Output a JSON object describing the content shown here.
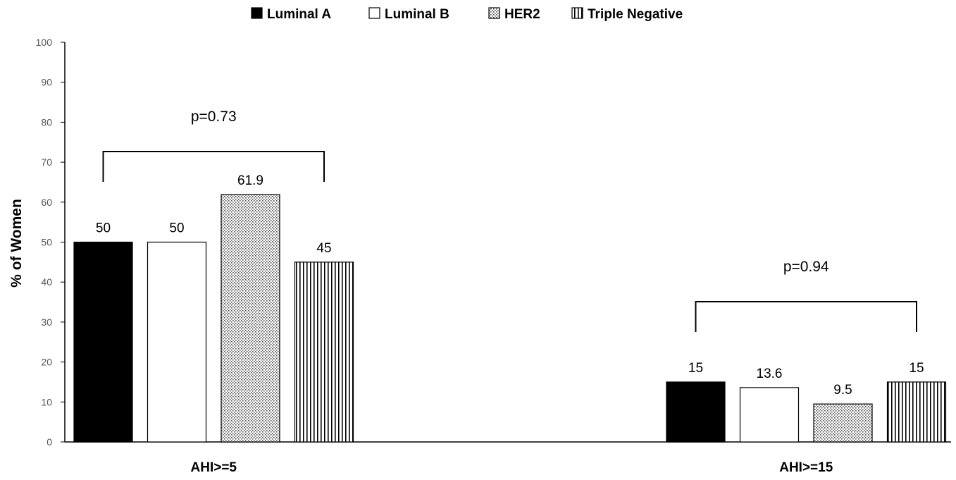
{
  "chart_data": {
    "type": "bar",
    "categories": [
      "AHI>=5",
      "AHI>=15"
    ],
    "series": [
      {
        "name": "Luminal A",
        "values": [
          50,
          15
        ],
        "pattern": "solid",
        "color": "#000000"
      },
      {
        "name": "Luminal B",
        "values": [
          50,
          13.6
        ],
        "pattern": "empty",
        "color": "#ffffff"
      },
      {
        "name": "HER2",
        "values": [
          61.9,
          9.5
        ],
        "pattern": "dots",
        "color": "#dcdcdc"
      },
      {
        "name": "Triple Negative",
        "values": [
          45,
          15
        ],
        "pattern": "vertical-lines",
        "color": "#ffffff"
      }
    ],
    "value_labels": [
      [
        "50",
        "15"
      ],
      [
        "50",
        "13.6"
      ],
      [
        "61.9",
        "9.5"
      ],
      [
        "45",
        "15"
      ]
    ],
    "ylabel": "% of Women",
    "xlabel": "",
    "ylim": [
      0,
      100
    ],
    "yticks": [
      0,
      10,
      20,
      30,
      40,
      50,
      60,
      70,
      80,
      90,
      100
    ],
    "grid": false,
    "legend_position": "top-center",
    "annotations": [
      {
        "category": "AHI>=5",
        "text": "p=0.73"
      },
      {
        "category": "AHI>=15",
        "text": "p=0.94"
      }
    ]
  }
}
